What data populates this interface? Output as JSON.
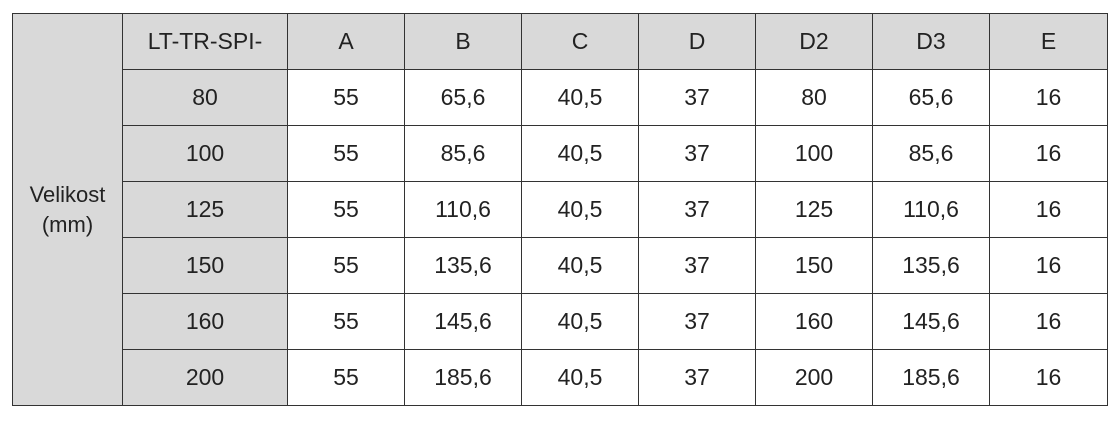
{
  "table": {
    "row_header": "Velikost (mm)",
    "columns": [
      "LT-TR-SPI-",
      "A",
      "B",
      "C",
      "D",
      "D2",
      "D3",
      "E"
    ],
    "rows": [
      [
        "80",
        "55",
        "65,6",
        "40,5",
        "37",
        "80",
        "65,6",
        "16"
      ],
      [
        "100",
        "55",
        "85,6",
        "40,5",
        "37",
        "100",
        "85,6",
        "16"
      ],
      [
        "125",
        "55",
        "110,6",
        "40,5",
        "37",
        "125",
        "110,6",
        "16"
      ],
      [
        "150",
        "55",
        "135,6",
        "40,5",
        "37",
        "150",
        "135,6",
        "16"
      ],
      [
        "160",
        "55",
        "145,6",
        "40,5",
        "37",
        "160",
        "145,6",
        "16"
      ],
      [
        "200",
        "55",
        "185,6",
        "40,5",
        "37",
        "200",
        "185,6",
        "16"
      ]
    ]
  }
}
